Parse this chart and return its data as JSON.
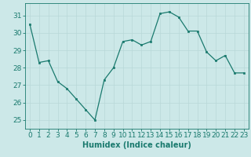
{
  "x": [
    0,
    1,
    2,
    3,
    4,
    5,
    6,
    7,
    8,
    9,
    10,
    11,
    12,
    13,
    14,
    15,
    16,
    17,
    18,
    19,
    20,
    21,
    22,
    23
  ],
  "y": [
    30.5,
    28.3,
    28.4,
    27.2,
    26.8,
    26.2,
    25.6,
    25.0,
    27.3,
    28.0,
    29.5,
    29.6,
    29.3,
    29.5,
    31.1,
    31.2,
    30.9,
    30.1,
    30.1,
    28.9,
    28.4,
    28.7,
    27.7,
    27.7
  ],
  "xlim": [
    -0.5,
    23.5
  ],
  "ylim": [
    24.5,
    31.7
  ],
  "yticks": [
    25,
    26,
    27,
    28,
    29,
    30,
    31
  ],
  "xticks": [
    0,
    1,
    2,
    3,
    4,
    5,
    6,
    7,
    8,
    9,
    10,
    11,
    12,
    13,
    14,
    15,
    16,
    17,
    18,
    19,
    20,
    21,
    22,
    23
  ],
  "xlabel": "Humidex (Indice chaleur)",
  "line_color": "#1a7a6e",
  "marker_color": "#1a7a6e",
  "bg_color": "#cce8e8",
  "grid_color": "#b8d8d8",
  "axis_color": "#1a7a6e",
  "tick_label_color": "#1a7a6e",
  "xlabel_color": "#1a7a6e",
  "xlabel_fontsize": 7,
  "tick_fontsize": 6.5
}
